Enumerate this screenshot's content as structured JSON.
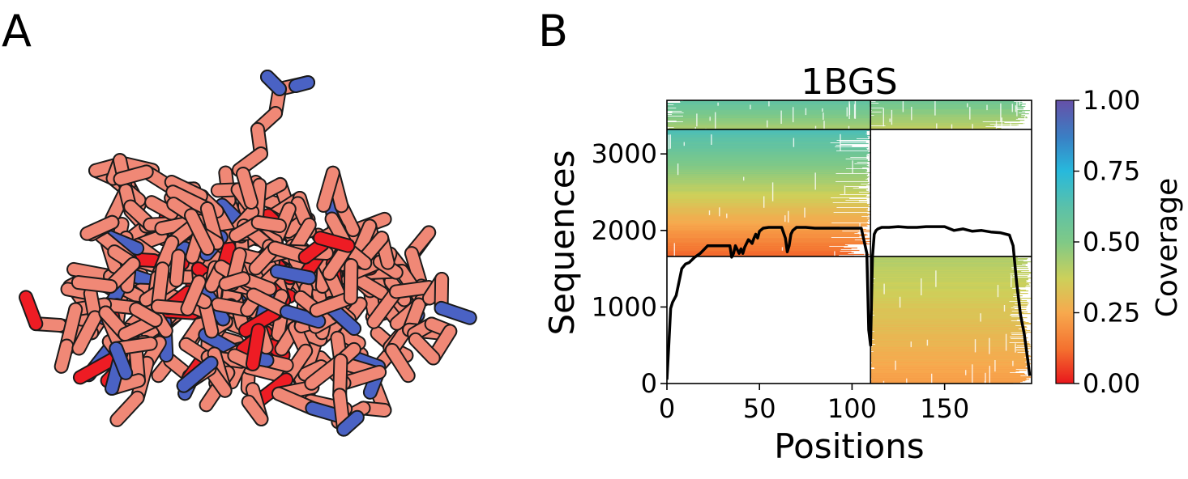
{
  "panels": {
    "a_label": "A",
    "b_label": "B"
  },
  "colors": {
    "stick_salmon": "#f08876",
    "stick_blue": "#4a62c4",
    "stick_red": "#ee1c24",
    "outline": "#1a1a1a",
    "curve": "#000000"
  },
  "chart_data": {
    "type": "heatmap",
    "title": "1BGS",
    "xlabel": "Positions",
    "ylabel": "Sequences",
    "colorbar_label": "Coverage",
    "xlim": [
      0,
      197
    ],
    "ylim": [
      0,
      3700
    ],
    "x_ticks": [
      0,
      50,
      100,
      150
    ],
    "x_tick_labels": [
      "0",
      "50",
      "100",
      "150"
    ],
    "y_ticks": [
      0,
      1000,
      2000,
      3000
    ],
    "y_tick_labels": [
      "0",
      "1000",
      "2000",
      "3000"
    ],
    "colorbar_ticks": [
      0.0,
      0.25,
      0.5,
      0.75,
      1.0
    ],
    "colorbar_tick_labels": [
      "0.00",
      "0.25",
      "0.50",
      "0.75",
      "1.00"
    ],
    "colormap_stops": [
      {
        "v": 0.0,
        "c": "#e8171c"
      },
      {
        "v": 0.12,
        "c": "#f4702f"
      },
      {
        "v": 0.25,
        "c": "#f7a94e"
      },
      {
        "v": 0.37,
        "c": "#cdd05a"
      },
      {
        "v": 0.5,
        "c": "#7fc987"
      },
      {
        "v": 0.62,
        "c": "#5cc1a8"
      },
      {
        "v": 0.75,
        "c": "#27b9dc"
      },
      {
        "v": 0.87,
        "c": "#3a7fc4"
      },
      {
        "v": 1.0,
        "c": "#6650a8"
      }
    ],
    "dividers": {
      "x": 110,
      "y": [
        1660,
        3320
      ]
    },
    "blocks": [
      {
        "name": "top-left",
        "x": [
          0,
          110
        ],
        "y": [
          3320,
          3700
        ],
        "c_bottom": 0.42,
        "c_top": 0.6
      },
      {
        "name": "top-right",
        "x": [
          110,
          197
        ],
        "y": [
          3320,
          3700
        ],
        "c_bottom": 0.38,
        "c_top": 0.55
      },
      {
        "name": "middle-left",
        "x": [
          0,
          110
        ],
        "y": [
          1660,
          3320
        ],
        "c_bottom": 0.1,
        "c_top": 0.66
      },
      {
        "name": "bottom-right",
        "x": [
          110,
          197
        ],
        "y": [
          0,
          1660
        ],
        "c_bottom": 0.22,
        "c_top": 0.42
      }
    ],
    "coverage_curve": {
      "x": [
        0,
        1,
        2,
        3,
        5,
        8,
        10,
        12,
        15,
        18,
        22,
        26,
        30,
        34,
        35,
        36,
        37,
        38,
        39,
        40,
        41,
        42,
        43,
        44,
        45,
        46,
        47,
        48,
        49,
        50,
        52,
        55,
        58,
        60,
        62,
        64,
        65,
        66,
        67,
        68,
        70,
        75,
        80,
        85,
        90,
        95,
        100,
        105,
        108,
        109,
        110,
        111,
        112,
        113,
        114,
        116,
        120,
        125,
        130,
        135,
        140,
        145,
        150,
        155,
        160,
        165,
        170,
        175,
        180,
        185,
        187,
        189,
        191,
        193,
        195,
        196
      ],
      "y": [
        50,
        500,
        980,
        1060,
        1150,
        1500,
        1560,
        1580,
        1650,
        1700,
        1800,
        1800,
        1800,
        1800,
        1650,
        1700,
        1800,
        1750,
        1700,
        1760,
        1700,
        1780,
        1830,
        1880,
        1860,
        1830,
        1900,
        1950,
        1900,
        1990,
        2030,
        2040,
        2040,
        2040,
        2040,
        1900,
        1720,
        1800,
        1950,
        2000,
        2040,
        2040,
        2030,
        2030,
        2030,
        2030,
        2030,
        2030,
        1700,
        700,
        500,
        1650,
        1950,
        2000,
        2020,
        2040,
        2040,
        2050,
        2040,
        2040,
        2050,
        2050,
        2050,
        2000,
        2020,
        1990,
        2000,
        1980,
        1970,
        1940,
        1800,
        1300,
        900,
        650,
        300,
        100
      ]
    }
  }
}
